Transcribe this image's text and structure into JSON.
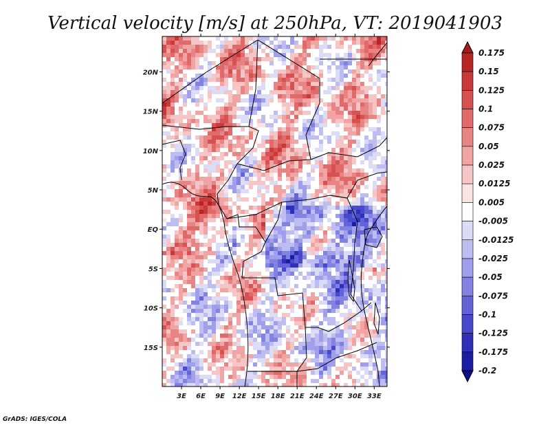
{
  "chart_data": {
    "type": "heatmap",
    "title": "Vertical velocity [m/s] at 250hPa, VT: 2019041903",
    "x_ticks": [
      "3E",
      "6E",
      "9E",
      "12E",
      "15E",
      "18E",
      "21E",
      "24E",
      "27E",
      "30E",
      "33E"
    ],
    "x_values": [
      3,
      6,
      9,
      12,
      15,
      18,
      21,
      24,
      27,
      30,
      33
    ],
    "y_ticks": [
      "20N",
      "15N",
      "10N",
      "5N",
      "EQ",
      "5S",
      "10S",
      "15S"
    ],
    "y_values": [
      20,
      15,
      10,
      5,
      0,
      -5,
      -10,
      -15
    ],
    "xlim": [
      0,
      35
    ],
    "ylim": [
      -20,
      24.5
    ],
    "colorbar": {
      "labels": [
        "0.175",
        "0.15",
        "0.125",
        "0.1",
        "0.075",
        "0.05",
        "0.025",
        "0.0125",
        "0.005",
        "-0.005",
        "-0.0125",
        "-0.025",
        "-0.05",
        "-0.075",
        "-0.1",
        "-0.125",
        "-0.175",
        "-0.2"
      ],
      "colors": [
        "#a71c1c",
        "#b82525",
        "#c93939",
        "#d75151",
        "#e06a6a",
        "#e88484",
        "#f0a4a4",
        "#f6c6c6",
        "#fbe3e3",
        "#ffffff",
        "#dcdcf7",
        "#bdbdf1",
        "#9f9fec",
        "#8282e3",
        "#6464d9",
        "#4848cc",
        "#2f2fb9",
        "#1c1ca3",
        "#10108a"
      ]
    }
  },
  "footer": "GrADS: IGES/COLA"
}
